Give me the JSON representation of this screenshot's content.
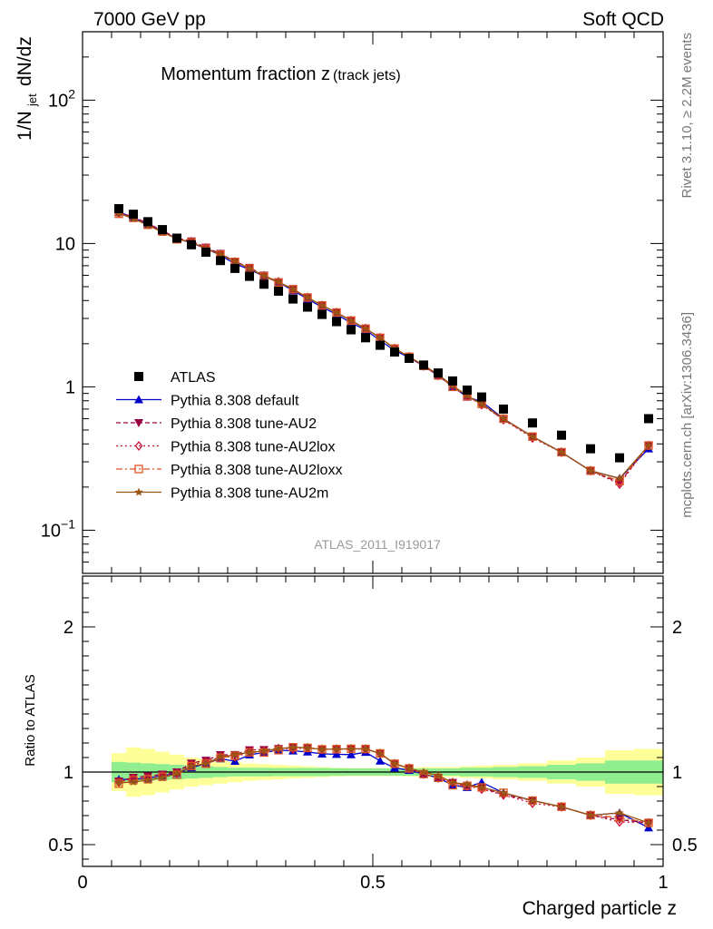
{
  "header": {
    "energy": "7000 GeV pp",
    "category": "Soft QCD",
    "side_rivet": "Rivet 3.1.10, ≥ 2.2M events",
    "side_site": "mcplots.cern.ch [arXiv:1306.3436]",
    "analysis_id": "ATLAS_2011_I919017"
  },
  "chart_data": {
    "type": "line",
    "title_main": "Momentum fraction z",
    "title_sub": "(track jets)",
    "xlabel": "Charged particle z",
    "ylabel": "1/N_jet dN/dz",
    "ylabel_ratio": "Ratio to ATLAS",
    "xlim": [
      0,
      1
    ],
    "ylim": [
      0.05,
      300
    ],
    "yscale": "log",
    "ratio_ylim": [
      0.35,
      2.35
    ],
    "x_ticks": [
      "0",
      "0.5",
      "1"
    ],
    "y_ticks": [
      "10^-1",
      "1",
      "10",
      "10^2"
    ],
    "ratio_ticks": [
      "0.5",
      "1",
      "2"
    ],
    "legend_position": "lower-left",
    "x": [
      0.0625,
      0.0875,
      0.1125,
      0.1375,
      0.1625,
      0.1875,
      0.2125,
      0.2375,
      0.2625,
      0.2875,
      0.3125,
      0.3375,
      0.3625,
      0.3875,
      0.4125,
      0.4375,
      0.4625,
      0.4875,
      0.5125,
      0.5375,
      0.5625,
      0.5875,
      0.6125,
      0.6375,
      0.6625,
      0.6875,
      0.725,
      0.775,
      0.825,
      0.875,
      0.925,
      0.975
    ],
    "data": {
      "name": "ATLAS",
      "color": "#000000",
      "values": [
        17.5,
        16.0,
        14.2,
        12.5,
        10.9,
        9.8,
        8.7,
        7.6,
        6.7,
        5.9,
        5.2,
        4.65,
        4.1,
        3.6,
        3.2,
        2.85,
        2.5,
        2.2,
        1.95,
        1.75,
        1.58,
        1.42,
        1.25,
        1.1,
        0.95,
        0.85,
        0.7,
        0.56,
        0.46,
        0.37,
        0.32,
        0.6
      ],
      "band_inner": [
        0.07,
        0.065,
        0.06,
        0.055,
        0.05,
        0.045,
        0.04,
        0.035,
        0.03,
        0.03,
        0.03,
        0.028,
        0.028,
        0.028,
        0.028,
        0.026,
        0.025,
        0.025,
        0.025,
        0.025,
        0.025,
        0.025,
        0.025,
        0.025,
        0.03,
        0.03,
        0.035,
        0.04,
        0.05,
        0.06,
        0.08,
        0.08
      ],
      "band_outer": [
        0.13,
        0.17,
        0.16,
        0.14,
        0.12,
        0.1,
        0.09,
        0.08,
        0.07,
        0.06,
        0.055,
        0.05,
        0.045,
        0.04,
        0.035,
        0.03,
        0.028,
        0.028,
        0.028,
        0.028,
        0.03,
        0.035,
        0.035,
        0.035,
        0.04,
        0.045,
        0.05,
        0.06,
        0.08,
        0.1,
        0.15,
        0.16
      ],
      "band_inner_color": "#90ee90",
      "band_outer_color": "#ffff99"
    },
    "series": [
      {
        "name": "Pythia 8.308 default",
        "color": "#0000cc",
        "marker": "triangle-up",
        "dash": "",
        "values": [
          16.6,
          15.2,
          13.6,
          12.2,
          10.8,
          10.1,
          9.2,
          8.3,
          7.2,
          6.6,
          5.9,
          5.35,
          4.7,
          4.1,
          3.6,
          3.2,
          2.8,
          2.5,
          2.1,
          1.8,
          1.6,
          1.4,
          1.2,
          1.0,
          0.85,
          0.79,
          0.6,
          0.45,
          0.35,
          0.26,
          0.23,
          0.37
        ]
      },
      {
        "name": "Pythia 8.308 tune-AU2",
        "color": "#990044",
        "marker": "triangle-down",
        "dash": "5,3",
        "values": [
          16.4,
          15.4,
          13.8,
          12.3,
          10.9,
          10.4,
          9.4,
          8.5,
          7.5,
          6.8,
          6.0,
          5.4,
          4.8,
          4.2,
          3.7,
          3.3,
          2.9,
          2.55,
          2.2,
          1.85,
          1.62,
          1.4,
          1.2,
          1.02,
          0.86,
          0.76,
          0.59,
          0.45,
          0.35,
          0.26,
          0.215,
          0.39
        ]
      },
      {
        "name": "Pythia 8.308 tune-AU2lox",
        "color": "#cc1133",
        "marker": "diamond-open",
        "dash": "2,3",
        "values": [
          16.3,
          15.3,
          13.6,
          12.2,
          10.8,
          10.3,
          9.3,
          8.4,
          7.4,
          6.7,
          5.95,
          5.4,
          4.75,
          4.2,
          3.7,
          3.3,
          2.9,
          2.55,
          2.2,
          1.85,
          1.62,
          1.4,
          1.2,
          1.02,
          0.86,
          0.75,
          0.59,
          0.44,
          0.35,
          0.26,
          0.21,
          0.39
        ]
      },
      {
        "name": "Pythia 8.308 tune-AU2loxx",
        "color": "#dd5522",
        "marker": "square-open",
        "dash": "7,3,2,3",
        "values": [
          16.1,
          15.1,
          13.5,
          12.1,
          10.7,
          10.2,
          9.2,
          8.35,
          7.45,
          6.7,
          5.9,
          5.35,
          4.8,
          4.2,
          3.7,
          3.3,
          2.9,
          2.55,
          2.2,
          1.85,
          1.62,
          1.4,
          1.2,
          1.0,
          0.86,
          0.76,
          0.6,
          0.45,
          0.35,
          0.26,
          0.22,
          0.39
        ]
      },
      {
        "name": "Pythia 8.308 tune-AU2m",
        "color": "#995511",
        "marker": "star",
        "dash": "",
        "values": [
          16.2,
          14.9,
          13.4,
          12.0,
          10.8,
          10.2,
          9.2,
          8.4,
          7.5,
          6.7,
          5.95,
          5.4,
          4.8,
          4.2,
          3.7,
          3.3,
          2.9,
          2.55,
          2.2,
          1.85,
          1.62,
          1.42,
          1.22,
          1.02,
          0.87,
          0.76,
          0.6,
          0.45,
          0.35,
          0.26,
          0.23,
          0.39
        ]
      }
    ]
  }
}
